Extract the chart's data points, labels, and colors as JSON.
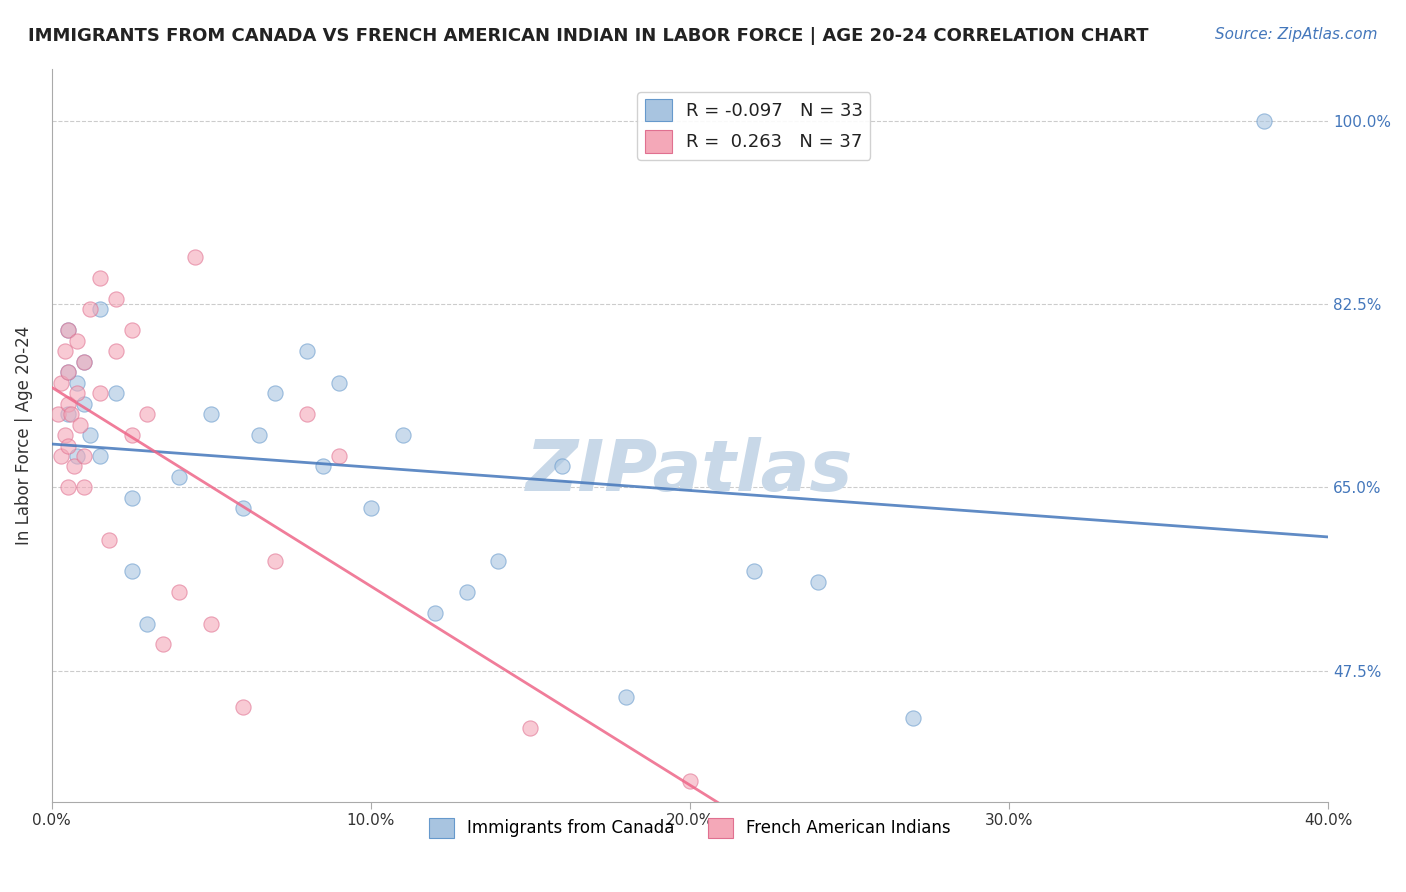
{
  "title": "IMMIGRANTS FROM CANADA VS FRENCH AMERICAN INDIAN IN LABOR FORCE | AGE 20-24 CORRELATION CHART",
  "source": "Source: ZipAtlas.com",
  "ylabel": "In Labor Force | Age 20-24",
  "xlim": [
    0.0,
    40.0
  ],
  "ylim": [
    35.0,
    105.0
  ],
  "yticks": [
    47.5,
    65.0,
    82.5,
    100.0
  ],
  "xticks": [
    0.0,
    10.0,
    20.0,
    30.0,
    40.0
  ],
  "xtick_labels": [
    "0.0%",
    "10.0%",
    "20.0%",
    "30.0%",
    "40.0%"
  ],
  "ytick_labels": [
    "47.5%",
    "65.0%",
    "82.5%",
    "100.0%"
  ],
  "blue_R": -0.097,
  "blue_N": 33,
  "pink_R": 0.263,
  "pink_N": 37,
  "blue_color": "#a8c4e0",
  "blue_edge_color": "#6699cc",
  "pink_color": "#f4a8b8",
  "pink_edge_color": "#e07090",
  "blue_line_color": "#4477bb",
  "pink_line_color": "#ee6688",
  "watermark_color": "#c8d8e8",
  "blue_x": [
    0.5,
    0.5,
    0.5,
    0.8,
    0.8,
    1.0,
    1.0,
    1.2,
    1.5,
    1.5,
    2.0,
    2.5,
    2.5,
    3.0,
    4.0,
    5.0,
    6.0,
    6.5,
    7.0,
    8.0,
    8.5,
    9.0,
    10.0,
    11.0,
    12.0,
    13.0,
    14.0,
    16.0,
    18.0,
    22.0,
    24.0,
    27.0,
    38.0
  ],
  "blue_y": [
    72.0,
    76.0,
    80.0,
    68.0,
    75.0,
    73.0,
    77.0,
    70.0,
    68.0,
    82.0,
    74.0,
    57.0,
    64.0,
    52.0,
    66.0,
    72.0,
    63.0,
    70.0,
    74.0,
    78.0,
    67.0,
    75.0,
    63.0,
    70.0,
    53.0,
    55.0,
    58.0,
    67.0,
    45.0,
    57.0,
    56.0,
    43.0,
    100.0
  ],
  "pink_x": [
    0.2,
    0.3,
    0.3,
    0.4,
    0.4,
    0.5,
    0.5,
    0.5,
    0.5,
    0.5,
    0.6,
    0.7,
    0.8,
    0.8,
    0.9,
    1.0,
    1.0,
    1.0,
    1.2,
    1.5,
    1.5,
    1.8,
    2.0,
    2.0,
    2.5,
    2.5,
    3.0,
    3.5,
    4.0,
    4.5,
    5.0,
    6.0,
    7.0,
    8.0,
    9.0,
    15.0,
    20.0
  ],
  "pink_y": [
    72.0,
    68.0,
    75.0,
    70.0,
    78.0,
    65.0,
    69.0,
    73.0,
    76.0,
    80.0,
    72.0,
    67.0,
    74.0,
    79.0,
    71.0,
    65.0,
    68.0,
    77.0,
    82.0,
    74.0,
    85.0,
    60.0,
    78.0,
    83.0,
    70.0,
    80.0,
    72.0,
    50.0,
    55.0,
    87.0,
    52.0,
    44.0,
    58.0,
    72.0,
    68.0,
    42.0,
    37.0
  ],
  "marker_size": 120,
  "marker_alpha": 0.6,
  "line_alpha": 0.85,
  "grid_color": "#cccccc",
  "background_color": "#ffffff",
  "title_fontsize": 13,
  "source_fontsize": 11,
  "axis_label_fontsize": 12,
  "tick_fontsize": 11,
  "legend_label_blue": "Immigrants from Canada",
  "legend_label_pink": "French American Indians"
}
